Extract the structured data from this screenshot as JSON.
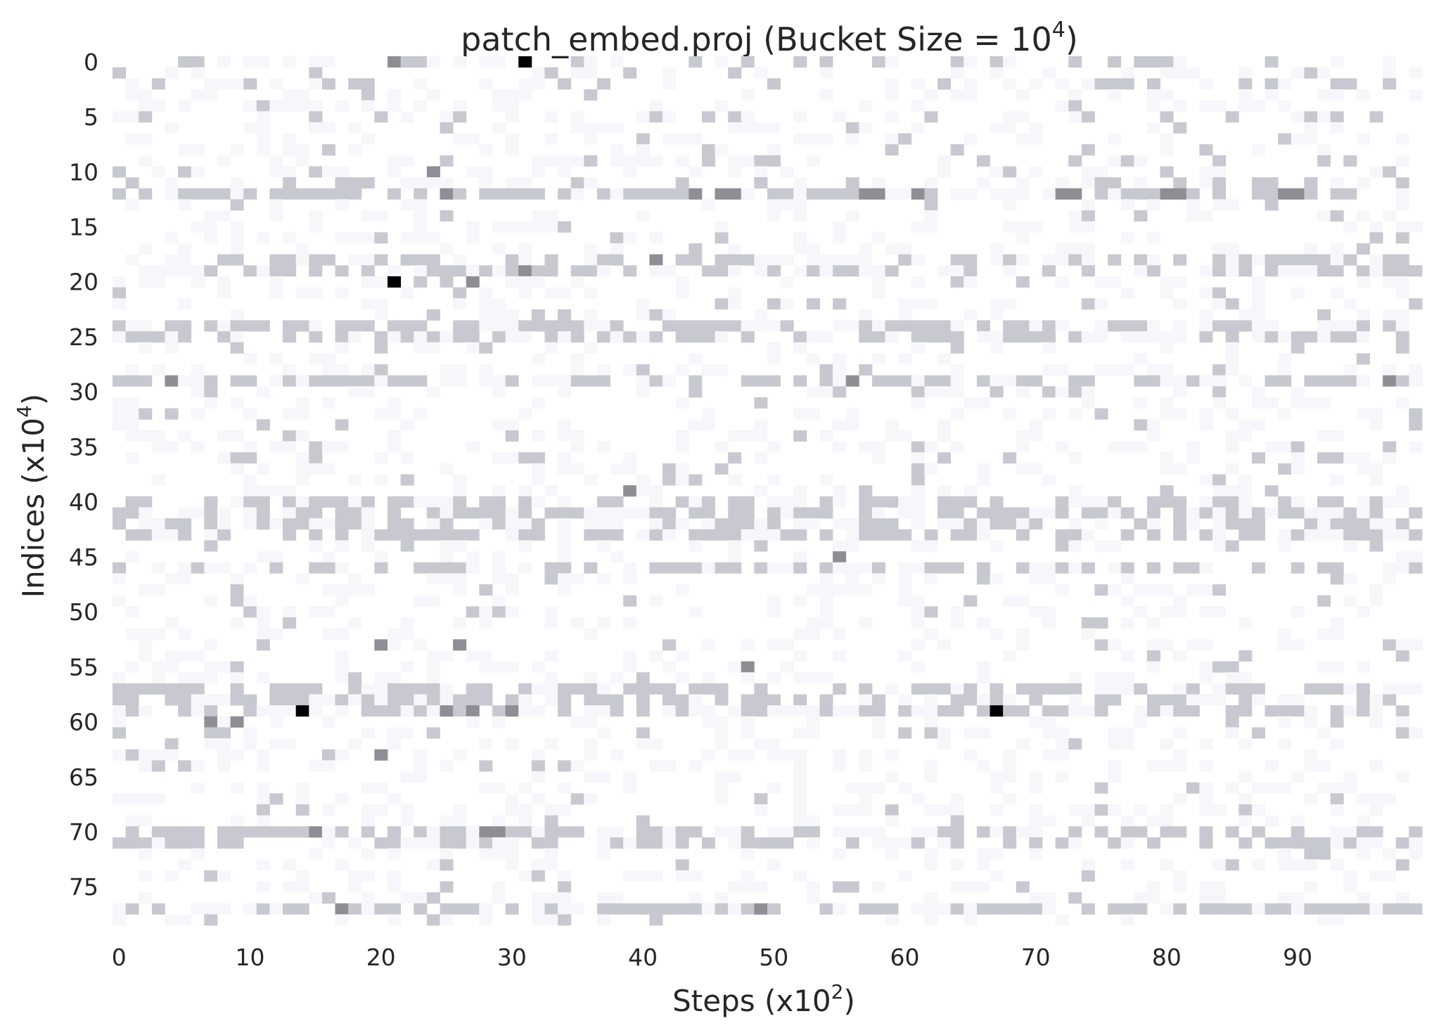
{
  "chart_data": {
    "type": "heatmap",
    "title": "patch_embed.proj (Bucket Size = 10",
    "title_sup": "4",
    "title_end": ")",
    "xlabel": "Steps (x10",
    "xlabel_sup": "2",
    "xlabel_end": ")",
    "ylabel": "Indices (x10",
    "ylabel_sup": "4",
    "ylabel_end": ")",
    "n_cols": 100,
    "n_rows": 79,
    "x_ticks": [
      "0",
      "10",
      "20",
      "30",
      "40",
      "50",
      "60",
      "70",
      "80",
      "90"
    ],
    "y_ticks": [
      "0",
      "5",
      "10",
      "15",
      "20",
      "25",
      "30",
      "35",
      "40",
      "45",
      "50",
      "55",
      "60",
      "65",
      "70",
      "75"
    ],
    "colormap": [
      "#f7f7fb",
      "#c8c8d0",
      "#8e8e94",
      "#000000"
    ],
    "grid": false,
    "legend": "none",
    "cells": {
      "dark": [
        [
          31,
          0
        ],
        [
          21,
          20
        ],
        [
          14,
          59
        ],
        [
          67,
          59
        ]
      ],
      "medium": [
        [
          31,
          19
        ],
        [
          24,
          10
        ],
        [
          25,
          12
        ],
        [
          27,
          20
        ],
        [
          26,
          53
        ],
        [
          27,
          59
        ],
        [
          25,
          59
        ],
        [
          30,
          59
        ],
        [
          39,
          39
        ],
        [
          48,
          55
        ],
        [
          41,
          18
        ],
        [
          7,
          60
        ],
        [
          9,
          60
        ],
        [
          20,
          63
        ],
        [
          56,
          29
        ],
        [
          55,
          45
        ],
        [
          97,
          29
        ],
        [
          44,
          12
        ],
        [
          46,
          12
        ],
        [
          47,
          12
        ],
        [
          57,
          12
        ],
        [
          58,
          12
        ],
        [
          61,
          12
        ],
        [
          72,
          12
        ],
        [
          73,
          12
        ],
        [
          80,
          12
        ],
        [
          81,
          12
        ],
        [
          89,
          12
        ],
        [
          90,
          12
        ],
        [
          20,
          53
        ],
        [
          15,
          70
        ],
        [
          28,
          70
        ],
        [
          29,
          70
        ],
        [
          17,
          77
        ],
        [
          49,
          77
        ],
        [
          4,
          29
        ],
        [
          21,
          0
        ]
      ],
      "light_rows": [
        [
          12,
          12
        ],
        [
          18,
          19
        ],
        [
          24,
          25
        ],
        [
          29,
          29
        ],
        [
          40,
          43
        ],
        [
          46,
          46
        ],
        [
          57,
          59
        ],
        [
          70,
          71
        ],
        [
          77,
          77
        ]
      ],
      "light_cols_extra": [
        [
          5,
          0
        ],
        [
          6,
          0
        ],
        [
          22,
          0
        ],
        [
          23,
          0
        ],
        [
          35,
          0
        ],
        [
          44,
          0
        ],
        [
          48,
          0
        ],
        [
          52,
          0
        ],
        [
          54,
          0
        ],
        [
          64,
          0
        ],
        [
          67,
          0
        ],
        [
          76,
          0
        ],
        [
          79,
          0
        ],
        [
          80,
          0
        ],
        [
          88,
          0
        ],
        [
          3,
          2
        ],
        [
          10,
          2
        ],
        [
          16,
          2
        ],
        [
          18,
          2
        ],
        [
          19,
          2
        ],
        [
          37,
          2
        ],
        [
          50,
          2
        ],
        [
          63,
          2
        ],
        [
          75,
          2
        ],
        [
          76,
          2
        ],
        [
          77,
          2
        ],
        [
          79,
          2
        ],
        [
          86,
          2
        ],
        [
          88,
          2
        ],
        [
          93,
          2
        ],
        [
          94,
          2
        ],
        [
          97,
          2
        ],
        [
          2,
          5
        ],
        [
          15,
          5
        ],
        [
          20,
          5
        ],
        [
          26,
          5
        ],
        [
          45,
          5
        ],
        [
          47,
          5
        ],
        [
          62,
          5
        ],
        [
          80,
          5
        ],
        [
          85,
          5
        ],
        [
          91,
          5
        ],
        [
          93,
          5
        ],
        [
          96,
          5
        ],
        [
          100,
          5
        ],
        [
          25,
          9
        ],
        [
          36,
          9
        ],
        [
          45,
          9
        ],
        [
          50,
          9
        ],
        [
          66,
          9
        ],
        [
          73,
          9
        ],
        [
          77,
          9
        ],
        [
          84,
          9
        ],
        [
          92,
          9
        ],
        [
          94,
          9
        ],
        [
          1,
          11
        ],
        [
          13,
          11
        ],
        [
          17,
          11
        ],
        [
          18,
          11
        ],
        [
          19,
          11
        ],
        [
          43,
          11
        ],
        [
          49,
          11
        ],
        [
          56,
          11
        ],
        [
          75,
          11
        ],
        [
          76,
          11
        ],
        [
          81,
          11
        ],
        [
          84,
          11
        ],
        [
          88,
          11
        ],
        [
          91,
          11
        ]
      ]
    }
  }
}
